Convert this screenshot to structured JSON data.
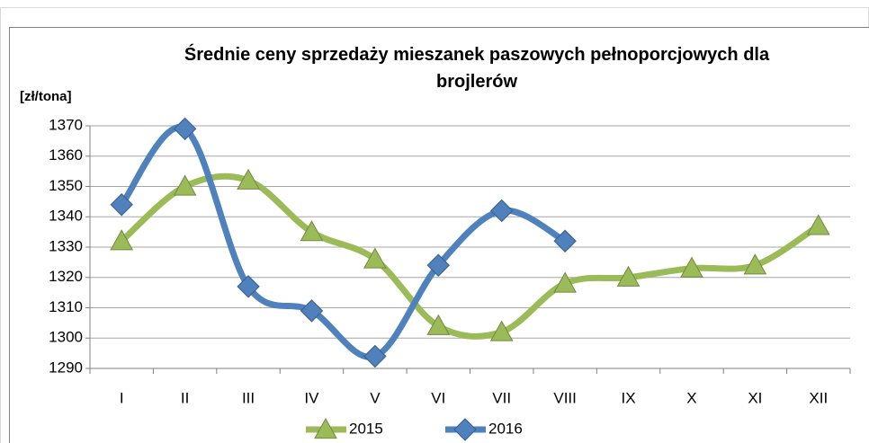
{
  "chart_data": {
    "type": "line",
    "title": "Średnie ceny sprzedaży mieszanek paszowych pełnoporcjowych dla brojlerów",
    "y_label": "[zł/tona]",
    "categories": [
      "I",
      "II",
      "III",
      "IV",
      "V",
      "VI",
      "VII",
      "VIII",
      "IX",
      "X",
      "XI",
      "XII"
    ],
    "series": [
      {
        "name": "2015",
        "color": "#9bbb59",
        "marker": "triangle",
        "values": [
          1332,
          1350,
          1352,
          1335,
          1326,
          1304,
          1302,
          1318,
          1320,
          1323,
          1324,
          1337
        ]
      },
      {
        "name": "2016",
        "color": "#4f81bd",
        "marker": "diamond",
        "values": [
          1344,
          1369,
          1317,
          1309,
          1294,
          1324,
          1342,
          1332,
          null,
          null,
          null,
          null
        ]
      }
    ],
    "ylim": [
      1290,
      1370
    ],
    "yticks": [
      1290,
      1300,
      1310,
      1320,
      1330,
      1340,
      1350,
      1360,
      1370
    ],
    "grid": true,
    "legend": "bottom"
  }
}
